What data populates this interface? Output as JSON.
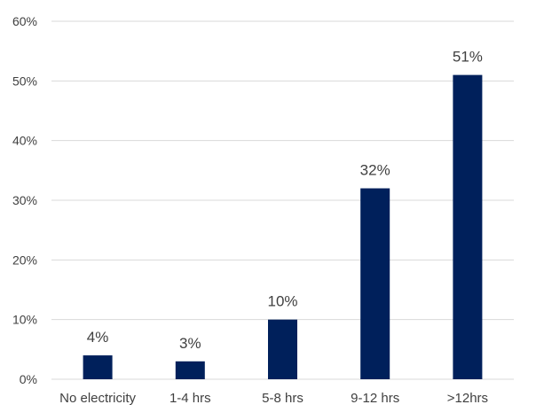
{
  "chart_data": {
    "type": "bar",
    "title": "",
    "xlabel": "",
    "ylabel": "",
    "categories": [
      "No electricity",
      "1-4 hrs",
      "5-8 hrs",
      "9-12 hrs",
      ">12hrs"
    ],
    "values": [
      4,
      3,
      10,
      32,
      51
    ],
    "data_labels": [
      "4%",
      "3%",
      "10%",
      "32%",
      "51%"
    ],
    "ylim": [
      0,
      60
    ],
    "y_ticks": [
      0,
      10,
      20,
      30,
      40,
      50,
      60
    ],
    "y_tick_labels": [
      "0%",
      "10%",
      "20%",
      "30%",
      "40%",
      "50%",
      "60%"
    ],
    "grid": true,
    "legend": "none",
    "bar_color": "#00205b"
  }
}
